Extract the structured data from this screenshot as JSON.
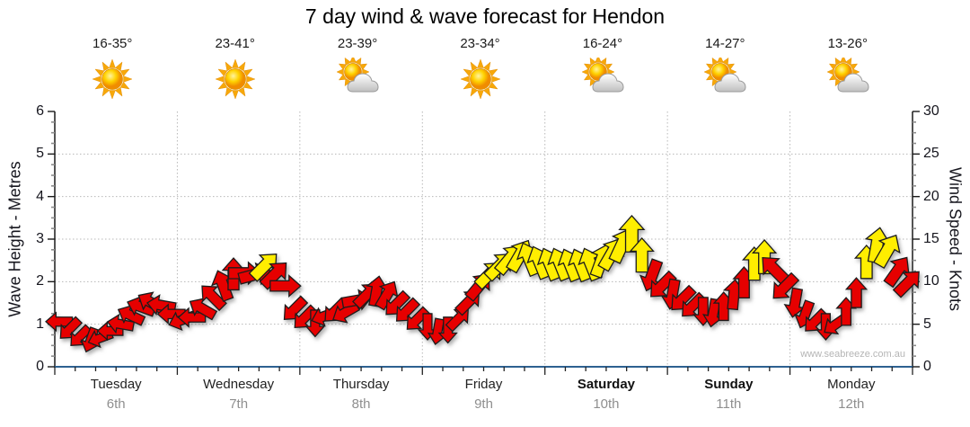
{
  "title": "7 day wind & wave forecast for Hendon",
  "watermark": "www.seabreeze.com.au",
  "days": [
    {
      "name": "Tuesday",
      "date": "6th",
      "temp": "16-35°",
      "icon": "sunny",
      "weekend": false
    },
    {
      "name": "Wednesday",
      "date": "7th",
      "temp": "23-41°",
      "icon": "sunny",
      "weekend": false
    },
    {
      "name": "Thursday",
      "date": "8th",
      "temp": "23-39°",
      "icon": "partly-cloudy",
      "weekend": false
    },
    {
      "name": "Friday",
      "date": "9th",
      "temp": "23-34°",
      "icon": "sunny",
      "weekend": false
    },
    {
      "name": "Saturday",
      "date": "10th",
      "temp": "16-24°",
      "icon": "partly-cloudy",
      "weekend": true
    },
    {
      "name": "Sunday",
      "date": "11th",
      "temp": "14-27°",
      "icon": "partly-cloudy",
      "weekend": true
    },
    {
      "name": "Monday",
      "date": "12th",
      "temp": "13-26°",
      "icon": "partly-cloudy",
      "weekend": false
    }
  ],
  "left_axis": {
    "title": "Wave Height - Metres",
    "min": 0,
    "max": 6,
    "ticks": [
      0,
      1,
      2,
      3,
      4,
      5,
      6
    ]
  },
  "right_axis": {
    "title": "Wind Speed - Knots",
    "min": 0,
    "max": 30,
    "ticks": [
      0,
      5,
      10,
      15,
      20,
      25,
      30
    ]
  },
  "colors": {
    "arrow_red": "#e60000",
    "arrow_yellow": "#ffee00",
    "arrow_outline": "#1c1c1c",
    "axis": "#1a1a1a",
    "x_axis_line": "#2e6191",
    "grid": "#b8b8b8",
    "text": "#16161e",
    "muted_date": "#8f8f8f",
    "watermark": "#b5b5b5",
    "sun_core": "#ffd200",
    "sun_ray": "#f7a80a",
    "cloud": "#d9d9d9"
  },
  "chart_data": {
    "type": "wind-arrow-series",
    "title": "7 day wind & wave forecast for Hendon",
    "x_categories": [
      "Tuesday 6th",
      "Wednesday 7th",
      "Thursday 8th",
      "Friday 9th",
      "Saturday 10th",
      "Sunday 11th",
      "Monday 12th"
    ],
    "points_per_day": 12,
    "interval_hours": 2,
    "units": "knots",
    "y_right_range": [
      0,
      30
    ],
    "y_left_range_metres": [
      0,
      6
    ],
    "grid": "dotted, horizontal at 1-5 m, vertical at day boundaries",
    "legend": "arrow colour: red = lighter wind, yellow = stronger wind; arrow angle = wind direction",
    "knots": [
      5.3,
      4.5,
      3.6,
      3.2,
      3.4,
      4.2,
      5,
      6,
      7,
      7.5,
      7.2,
      6.2,
      5.5,
      5.8,
      6.8,
      8.2,
      9.5,
      10.8,
      11,
      10.8,
      11.8,
      10.8,
      9.5,
      6.8,
      5.8,
      5.2,
      6,
      6.6,
      6.4,
      7.8,
      8.4,
      8.8,
      8.4,
      7.4,
      6.6,
      5.6,
      4.8,
      4.2,
      4.4,
      5.6,
      7.6,
      9.4,
      10.8,
      11.8,
      12.6,
      13,
      12.6,
      12.2,
      12,
      12,
      11.9,
      11.9,
      12,
      12.4,
      13.2,
      14.2,
      15.5,
      13,
      10.8,
      9.6,
      8.6,
      8,
      7.2,
      6.6,
      6.4,
      7,
      8.4,
      9.8,
      12,
      12.8,
      11.4,
      9.4,
      7.6,
      6.2,
      5.4,
      4.8,
      5,
      6.4,
      8.6,
      12.2,
      14.2,
      13.6,
      11.2,
      9.8
    ],
    "dir_deg": [
      270,
      225,
      225,
      200,
      250,
      270,
      280,
      295,
      290,
      300,
      280,
      270,
      250,
      270,
      300,
      315,
      340,
      0,
      90,
      75,
      45,
      45,
      90,
      225,
      225,
      180,
      250,
      225,
      240,
      80,
      45,
      10,
      30,
      225,
      225,
      225,
      180,
      190,
      180,
      45,
      45,
      40,
      45,
      45,
      40,
      30,
      338,
      338,
      338,
      338,
      338,
      338,
      338,
      20,
      30,
      25,
      0,
      0,
      200,
      225,
      190,
      225,
      225,
      180,
      190,
      0,
      5,
      0,
      0,
      0,
      315,
      225,
      190,
      200,
      225,
      180,
      235,
      0,
      0,
      0,
      10,
      30,
      35,
      45
    ],
    "colors": "rrrrrrrrrrrrrrrrrrrryrrrrrrrrrrrrrrrrrrrrryyyyyyyyyyyyyyyyrrrrrrrrrryyrrrrrrrrryyyrr"
  }
}
